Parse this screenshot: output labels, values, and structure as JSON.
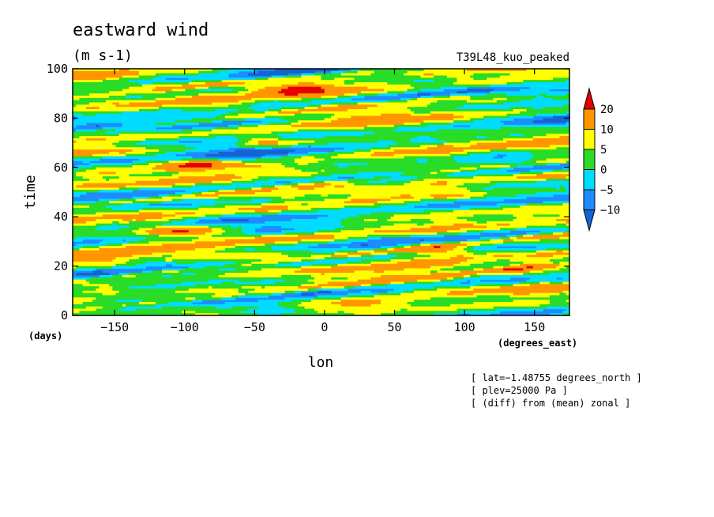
{
  "chart_data": {
    "type": "heatmap",
    "title": "eastward wind",
    "units": "(m s-1)",
    "run_label": "T39L48_kuo_peaked",
    "xlabel": "lon",
    "x_units": "(degrees_east)",
    "ylabel": "time",
    "y_units": "(days)",
    "xlim": [
      -180,
      175
    ],
    "ylim": [
      0,
      100
    ],
    "x_ticks": [
      -150,
      -100,
      -50,
      0,
      50,
      100,
      150
    ],
    "x_tick_labels": [
      "−150",
      "−100",
      "−50",
      "0",
      "50",
      "100",
      "150"
    ],
    "y_ticks": [
      0,
      20,
      40,
      60,
      80,
      100
    ],
    "y_tick_labels": [
      "0",
      "20",
      "40",
      "60",
      "80",
      "100"
    ],
    "colorbar": {
      "levels": [
        -10,
        -5,
        0,
        5,
        10,
        20
      ],
      "level_labels": [
        "−10",
        "−5",
        "0",
        "5",
        "10",
        "20"
      ],
      "colors": [
        "#1464d2",
        "#1e8cff",
        "#00dcff",
        "#28dc28",
        "#ffff00",
        "#ff9600",
        "#e60000"
      ]
    },
    "annotations": [
      "[ lat=−1.48755 degrees_north ]",
      "[ plev=25000 Pa ]",
      "[ (diff) from (mean) zonal ]"
    ],
    "features": {
      "eastward_streaks": [
        {
          "lon0": -180,
          "t0": 14,
          "lon1": 175,
          "t1": 33,
          "peak": 22
        },
        {
          "lon0": -180,
          "t0": 44,
          "lon1": 175,
          "t1": 63,
          "peak": 18
        },
        {
          "lon0": -180,
          "t0": 74,
          "lon1": 175,
          "t1": 93,
          "peak": 16
        },
        {
          "lon0": -180,
          "t0": 2,
          "lon1": 175,
          "t1": 21,
          "peak": 20
        },
        {
          "lon0": -180,
          "t0": 88,
          "lon1": 175,
          "t1": 107,
          "peak": 14
        }
      ],
      "blobs": [
        {
          "lon": -100,
          "t": 34,
          "peak": 24
        },
        {
          "lon": -95,
          "t": 61,
          "peak": 22
        },
        {
          "lon": -20,
          "t": 92,
          "peak": 22
        },
        {
          "lon": 80,
          "t": 26,
          "peak": 20
        },
        {
          "lon": 140,
          "t": 19,
          "peak": 20
        },
        {
          "lon": -170,
          "t": 23,
          "peak": 16
        },
        {
          "lon": 30,
          "t": 5,
          "peak": 14
        },
        {
          "lon": -40,
          "t": 70,
          "peak": 12
        }
      ]
    }
  }
}
